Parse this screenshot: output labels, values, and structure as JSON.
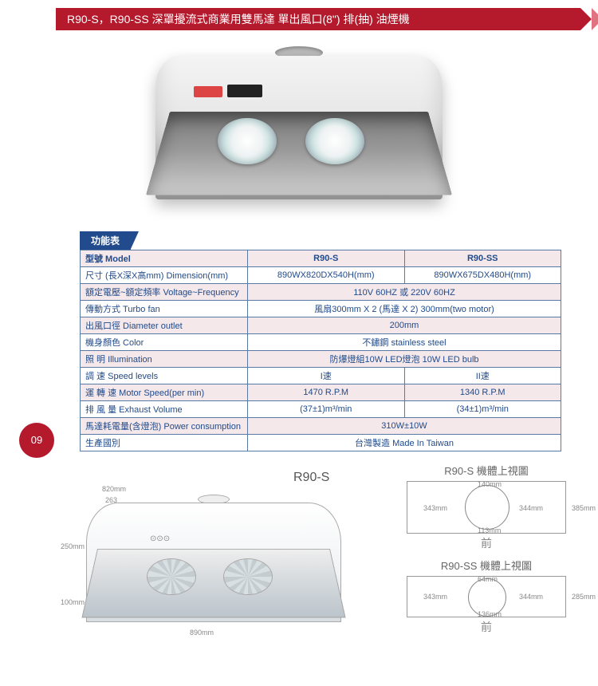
{
  "header": {
    "title": "R90-S，R90-SS 深罩擾流式商業用雙馬達  單出風口(8\") 排(抽) 油煙機",
    "bar_color": "#b4192c"
  },
  "page_number": "09",
  "spec": {
    "tab_label": "功能表",
    "columns": [
      "R90-S",
      "R90-SS"
    ],
    "rows": [
      {
        "label": "型號  Model",
        "v1": "R90-S",
        "v2": "R90-SS",
        "merged": false,
        "head": true
      },
      {
        "label": "尺寸 (長X深X高mm)  Dimension(mm)",
        "v1": "890WX820DX540H(mm)",
        "v2": "890WX675DX480H(mm)",
        "merged": false
      },
      {
        "label": "額定電壓~額定頻率  Voltage~Frequency",
        "v1": "110V 60HZ 或 220V 60HZ",
        "merged": true
      },
      {
        "label": "傳動方式  Turbo fan",
        "v1": "風扇300mm X 2 (馬達 X 2)  300mm(two motor)",
        "merged": true
      },
      {
        "label": "出風口徑  Diameter outlet",
        "v1": "200mm",
        "merged": true
      },
      {
        "label": "機身顏色  Color",
        "v1": "不鏽鋼  stainless steel",
        "merged": true
      },
      {
        "label": "照    明  Illumination",
        "v1": "防爆燈組10W LED燈泡  10W LED bulb",
        "merged": true
      },
      {
        "label": "調    速  Speed levels",
        "v1": "I速",
        "v2": "II速",
        "merged": false
      },
      {
        "label": "運 轉 速  Motor Speed(per min)",
        "v1": "1470 R.P.M",
        "v2": "1340 R.P.M",
        "merged": false
      },
      {
        "label": "排 風 量  Exhaust Volume",
        "v1": "(37±1)m³/min",
        "v2": "(34±1)m³/min",
        "merged": false
      },
      {
        "label": "馬達耗電量(含燈泡)  Power consumption",
        "v1": "310W±10W",
        "merged": true
      },
      {
        "label": "生產國別",
        "v1": "台灣製造  Made In Taiwan",
        "merged": true
      }
    ],
    "odd_row_bg": "#f4e8ea",
    "border_color": "#5a7aa6",
    "text_color": "#214b8c"
  },
  "diagrams": {
    "side_view_label": "R90-S",
    "top_views": [
      {
        "title": "R90-S 機體上視圖",
        "front_label": "前",
        "dims": {
          "left": "343mm",
          "right": "344mm",
          "top": "140mm",
          "bottom": "113mm",
          "height": "385mm"
        }
      },
      {
        "title": "R90-SS 機體上視圖",
        "front_label": "前",
        "dims": {
          "left": "343mm",
          "right": "344mm",
          "top": "64mm",
          "bottom": "136mm",
          "height": "285mm"
        }
      }
    ],
    "side_dims": {
      "top_width": "820mm",
      "side_gap": "263",
      "height_upper": "250mm",
      "height_lower": "100mm",
      "base_width": "890mm"
    }
  }
}
